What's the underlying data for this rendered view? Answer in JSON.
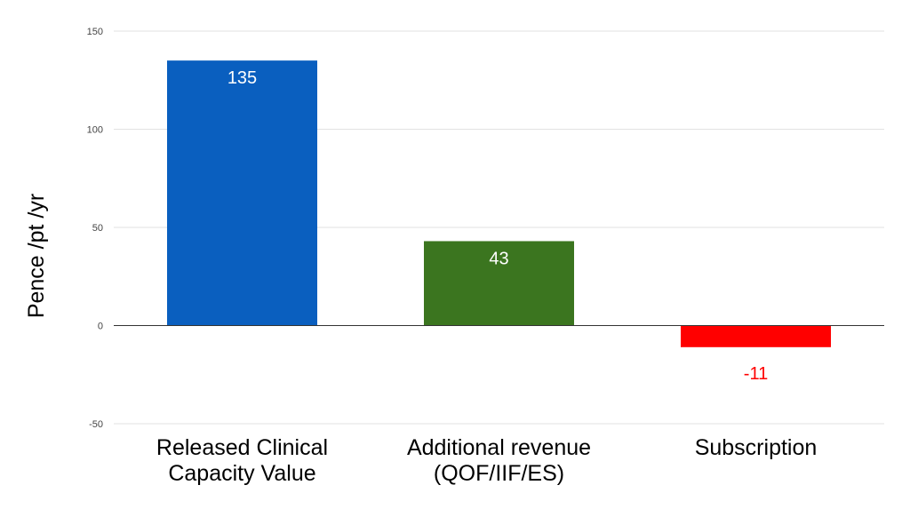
{
  "chart_data": {
    "type": "bar",
    "categories": [
      "Released Clinical Capacity Value",
      "Additional revenue (QOF/IIF/ES)",
      "Subscription"
    ],
    "category_lines": [
      [
        "Released Clinical",
        "Capacity Value"
      ],
      [
        "Additional revenue",
        "(QOF/IIF/ES)"
      ],
      [
        "Subscription"
      ]
    ],
    "values": [
      135,
      43,
      -11
    ],
    "data_labels": [
      "135",
      "43",
      "-11"
    ],
    "bar_colors": [
      "#0a5fbf",
      "#3b751f",
      "#ff0000"
    ],
    "data_label_colors": [
      "#ffffff",
      "#ffffff",
      "#ff0000"
    ],
    "ylabel": "Pence /pt /yr",
    "ylim": [
      -50,
      150
    ],
    "yticks": [
      150,
      100,
      50,
      0,
      -50
    ],
    "grid": true,
    "legend": "none"
  }
}
